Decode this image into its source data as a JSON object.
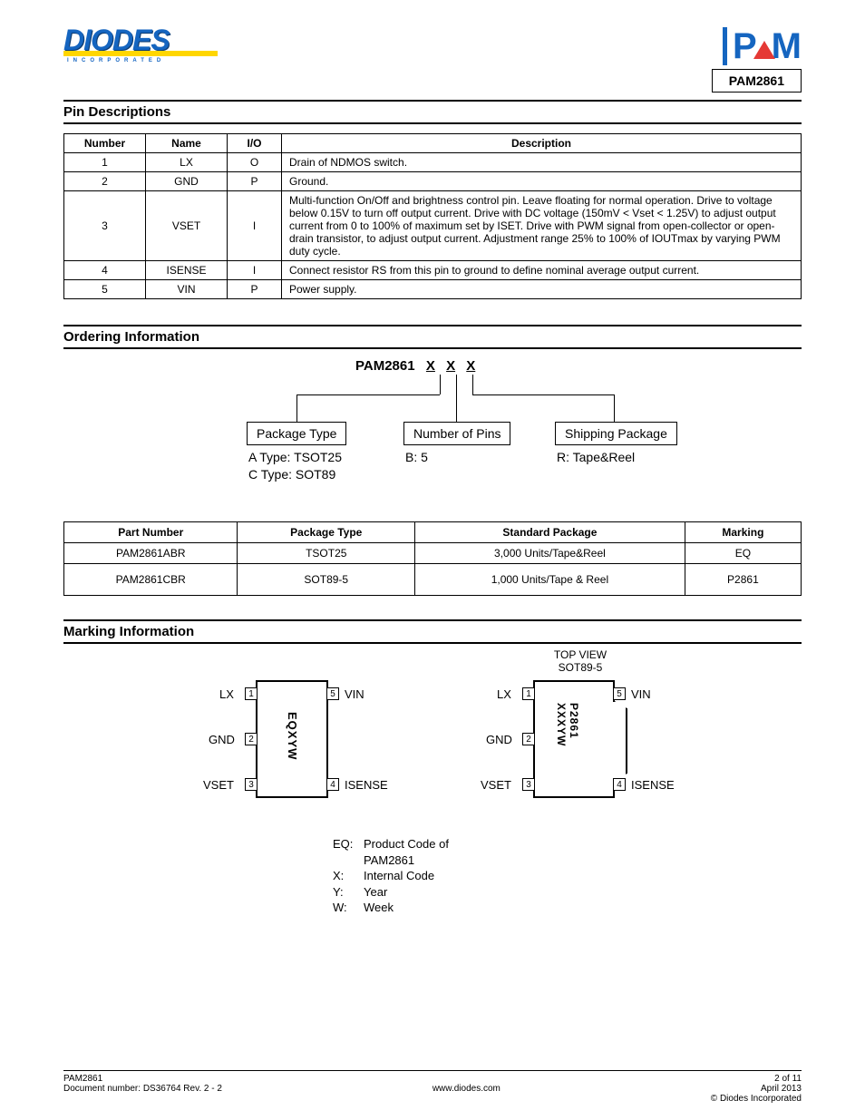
{
  "brand": {
    "diodes": "DIODES",
    "diodes_sub": "INCORPORATED",
    "pam_p": "P",
    "pam_m": "M",
    "part_number": "PAM2861"
  },
  "sections": {
    "pin_desc": "Pin Descriptions",
    "ordering_info": "Ordering Information",
    "marking_info": "Marking Information"
  },
  "pin_table": {
    "headers": [
      "Number",
      "Name",
      "I/O",
      "Description"
    ],
    "rows": [
      {
        "num": "1",
        "name": "LX",
        "io": "O",
        "desc": "Drain of NDMOS switch."
      },
      {
        "num": "2",
        "name": "GND",
        "io": "P",
        "desc": "Ground."
      },
      {
        "num": "3",
        "name": "VSET",
        "io": "I",
        "desc": "Multi-function On/Off and brightness control pin. Leave floating for normal operation. Drive to voltage below 0.15V to turn off output current. Drive with DC voltage (150mV < Vset < 1.25V) to adjust output current from 0 to 100% of maximum set by ISET. Drive with PWM signal from open-collector or open-drain transistor, to adjust output current. Adjustment range 25% to 100% of IOUTmax by varying PWM duty cycle."
      },
      {
        "num": "4",
        "name": "ISENSE",
        "io": "I",
        "desc": "Connect resistor RS from this pin to ground to define nominal average output current."
      },
      {
        "num": "5",
        "name": "VIN",
        "io": "P",
        "desc": "Power supply."
      }
    ]
  },
  "ordering": {
    "title_prefix": "PAM2861",
    "x": "X",
    "box1": "Package Type",
    "box1_sub1": "A Type: TSOT25",
    "box1_sub2": "C Type: SOT89",
    "box2": "Number of Pins",
    "box2_sub1": "B: 5",
    "box3": "Shipping Package",
    "box3_sub1": "R: Tape&Reel"
  },
  "order_table": {
    "headers": [
      "Part Number",
      "Package Type",
      "Standard Package",
      "Marking"
    ],
    "rows": [
      [
        "PAM2861ABR",
        "TSOT25",
        "3,000 Units/Tape&Reel",
        "EQ"
      ],
      [
        "PAM2861CBR",
        "SOT89-5",
        "1,000 Units/Tape & Reel",
        "P2861"
      ]
    ]
  },
  "marking": {
    "tsot": {
      "mark": "EQXYW",
      "p1": "LX",
      "p2": "GND",
      "p3": "VSET",
      "p4": "ISENSE",
      "p5": "VIN",
      "n1": "1",
      "n2": "2",
      "n3": "3",
      "n4": "4",
      "n5": "5"
    },
    "sot89": {
      "title1": "TOP VIEW",
      "title2": "SOT89-5",
      "mark1": "P2861",
      "mark2": "XXXYW",
      "p1": "LX",
      "p2": "GND",
      "p3": "VSET",
      "p4": "ISENSE",
      "p5": "VIN",
      "n1": "1",
      "n2": "2",
      "n3": "3",
      "n4": "4",
      "n5": "5"
    },
    "legend": [
      {
        "k": "EQ:",
        "v": "Product Code of"
      },
      {
        "k": "",
        "v": "PAM2861"
      },
      {
        "k": "X:",
        "v": "Internal Code"
      },
      {
        "k": "Y:",
        "v": "Year"
      },
      {
        "k": "W:",
        "v": "Week"
      }
    ]
  },
  "footer": {
    "left": "PAM2861",
    "mid_line1": "Document number: DS36764 Rev. 2 - 2",
    "mid_line2": "www.diodes.com",
    "right_line1": "2 of 11",
    "right_line2": "April 2013",
    "copyright": "© Diodes Incorporated"
  },
  "colors": {
    "brand_blue": "#1565c0",
    "brand_yellow": "#ffd600",
    "brand_red": "#e53935",
    "text": "#000000",
    "bg": "#ffffff"
  }
}
